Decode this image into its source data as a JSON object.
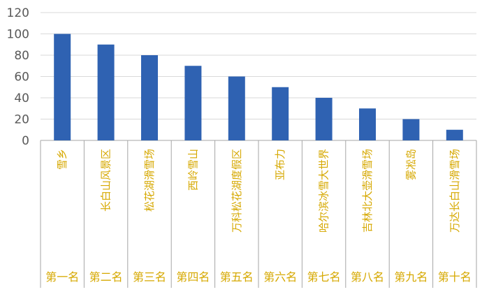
{
  "chart_data": {
    "type": "bar",
    "categories": [
      "雪乡",
      "长白山风景区",
      "松花湖滑雪场",
      "西岭雪山",
      "万科松花湖度假区",
      "亚布力",
      "哈尔滨冰雪大世界",
      "吉林北大壶滑雪场",
      "雾凇岛",
      "万达长白山滑雪场"
    ],
    "ranks": [
      "第一名",
      "第二名",
      "第三名",
      "第四名",
      "第五名",
      "第六名",
      "第七名",
      "第八名",
      "第九名",
      "第十名"
    ],
    "values": [
      100,
      90,
      80,
      70,
      60,
      50,
      40,
      30,
      20,
      10
    ],
    "yticks": [
      "0",
      "20",
      "40",
      "60",
      "80",
      "100",
      "120"
    ],
    "ylim": [
      0,
      120
    ],
    "grid": true,
    "colors": {
      "bar": "#2f62b2",
      "category_text": "#d6a800",
      "grid": "#d9d9d9",
      "axis": "#a6a6a6"
    }
  }
}
